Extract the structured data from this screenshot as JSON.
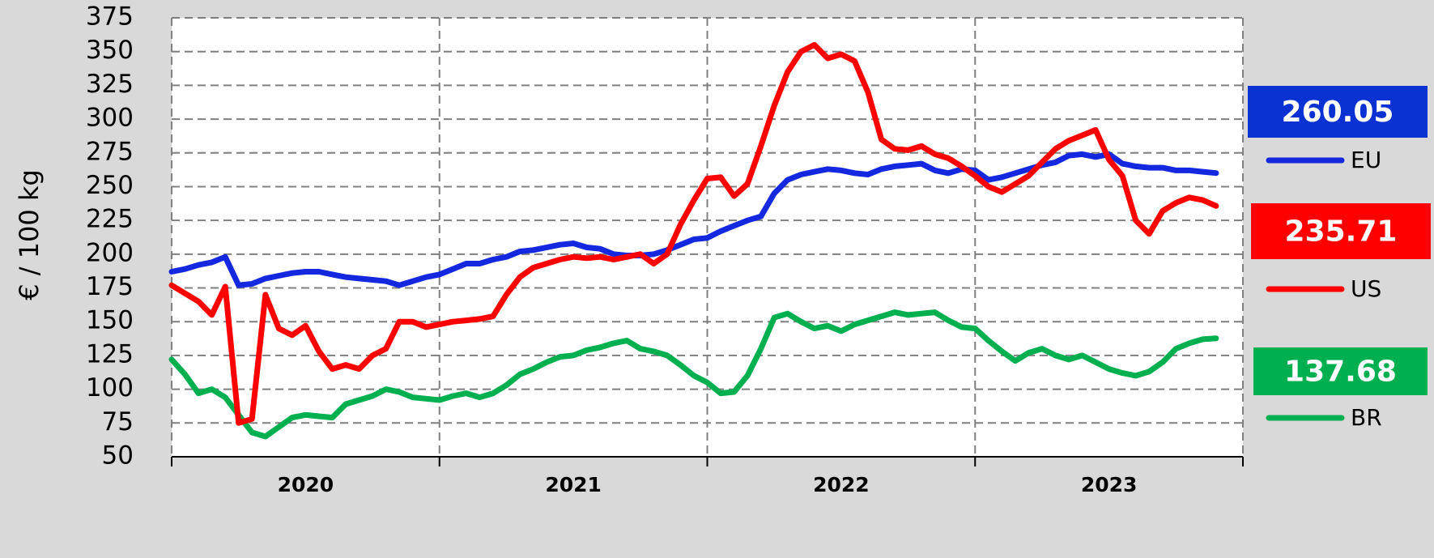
{
  "chart_data": {
    "type": "line",
    "y_label": "€ / 100 kg",
    "categories": [
      "2020",
      "2021",
      "2022",
      "2023"
    ],
    "x": [
      2020,
      2020.05,
      2020.1,
      2020.15,
      2020.2,
      2020.25,
      2020.3,
      2020.35,
      2020.4,
      2020.45,
      2020.5,
      2020.55,
      2020.6,
      2020.65,
      2020.7,
      2020.75,
      2020.8,
      2020.85,
      2020.9,
      2020.95,
      2021,
      2021.05,
      2021.1,
      2021.15,
      2021.2,
      2021.25,
      2021.3,
      2021.35,
      2021.4,
      2021.45,
      2021.5,
      2021.55,
      2021.6,
      2021.65,
      2021.7,
      2021.75,
      2021.8,
      2021.85,
      2021.9,
      2021.95,
      2022,
      2022.05,
      2022.1,
      2022.15,
      2022.2,
      2022.25,
      2022.3,
      2022.35,
      2022.4,
      2022.45,
      2022.5,
      2022.55,
      2022.6,
      2022.65,
      2022.7,
      2022.75,
      2022.8,
      2022.85,
      2022.9,
      2022.95,
      2023,
      2023.05,
      2023.1,
      2023.15,
      2023.2,
      2023.25,
      2023.3,
      2023.35,
      2023.4,
      2023.45,
      2023.5,
      2023.55,
      2023.6,
      2023.65,
      2023.7,
      2023.75,
      2023.8,
      2023.85,
      2023.9
    ],
    "series": [
      {
        "name": "EU",
        "color": "#1428e0",
        "box_color": "#0a32d2",
        "values": [
          187,
          189,
          192,
          194,
          198,
          177,
          178,
          182,
          184,
          186,
          187,
          187,
          185,
          183,
          182,
          181,
          180,
          177,
          180,
          183,
          185,
          189,
          193,
          193,
          196,
          198,
          202,
          203,
          205,
          207,
          208,
          205,
          204,
          200,
          199,
          199,
          200,
          203,
          207,
          211,
          212,
          217,
          221,
          225,
          228,
          245,
          255,
          259,
          261,
          263,
          262,
          260,
          259,
          263,
          265,
          266,
          267,
          262,
          260,
          263,
          262,
          255,
          257,
          260,
          263,
          266,
          268,
          273,
          274,
          272,
          274,
          267,
          265,
          264,
          264,
          262,
          262,
          261,
          260.05
        ]
      },
      {
        "name": "US",
        "color": "#ff0000",
        "box_color": "#ff0000",
        "values": [
          177,
          171,
          165,
          155,
          176,
          75,
          78,
          170,
          145,
          140,
          147,
          128,
          115,
          118,
          115,
          125,
          130,
          150,
          150,
          146,
          148,
          150,
          151,
          152,
          154,
          170,
          183,
          190,
          193,
          196,
          198,
          197,
          198,
          196,
          198,
          200,
          193,
          200,
          222,
          240,
          256,
          257,
          243,
          252,
          280,
          310,
          335,
          350,
          355,
          345,
          348,
          343,
          320,
          285,
          278,
          277,
          280,
          274,
          271,
          265,
          258,
          250,
          246,
          252,
          258,
          268,
          278,
          284,
          288,
          292,
          270,
          258,
          225,
          215,
          232,
          238,
          242,
          240,
          235.71
        ]
      },
      {
        "name": "BR",
        "color": "#00b050",
        "box_color": "#00b050",
        "values": [
          122,
          111,
          97,
          100,
          94,
          81,
          68,
          65,
          72,
          79,
          81,
          80,
          79,
          89,
          92,
          95,
          100,
          98,
          94,
          93,
          92,
          95,
          97,
          94,
          97,
          103,
          111,
          115,
          120,
          124,
          125,
          129,
          131,
          134,
          136,
          130,
          128,
          125,
          118,
          110,
          105,
          97,
          98,
          110,
          130,
          153,
          156,
          150,
          145,
          147,
          143,
          148,
          151,
          154,
          157,
          155,
          156,
          157,
          151,
          146,
          145,
          136,
          128,
          121,
          127,
          130,
          125,
          122,
          125,
          120,
          115,
          112,
          110,
          113,
          120,
          130,
          134,
          137,
          137.68
        ]
      }
    ],
    "xlim": [
      2020,
      2024
    ],
    "xticks": [
      2020,
      2021,
      2022,
      2023,
      2024
    ],
    "ylim": [
      50,
      375
    ],
    "yticks": [
      50,
      75,
      100,
      125,
      150,
      175,
      200,
      225,
      250,
      275,
      300,
      325,
      350,
      375
    ],
    "grid": true
  }
}
